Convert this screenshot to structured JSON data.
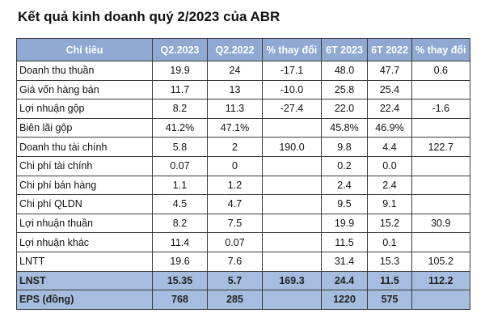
{
  "title": "Kết quả kinh doanh quý 2/2023 của ABR",
  "table": {
    "headers": [
      "Chỉ tiêu",
      "Q2.2023",
      "Q2.2022",
      "% thay đổi",
      "6T 2023",
      "6T 2022",
      "% thay đổi"
    ],
    "rows": [
      [
        "Doanh thu thuần",
        "19.9",
        "24",
        "-17.1",
        "48.0",
        "47.7",
        "0.6"
      ],
      [
        "Giá vốn hàng bán",
        "11.7",
        "13",
        "-10.0",
        "25.8",
        "25.4",
        ""
      ],
      [
        "Lợi nhuận gộp",
        "8.2",
        "11.3",
        "-27.4",
        "22.0",
        "22.4",
        "-1.6"
      ],
      [
        "Biên lãi gộp",
        "41.2%",
        "47.1%",
        "",
        "45.8%",
        "46.9%",
        ""
      ],
      [
        "Doanh thu tài chính",
        "5.8",
        "2",
        "190.0",
        "9.8",
        "4.4",
        "122.7"
      ],
      [
        "Chi phí tài chính",
        "0.07",
        "0",
        "",
        "0.2",
        "0.0",
        ""
      ],
      [
        "Chi phí bán hàng",
        "1.1",
        "1.2",
        "",
        "2.4",
        "2.4",
        ""
      ],
      [
        "Chi phí QLDN",
        "4.5",
        "4.7",
        "",
        "9.5",
        "9.1",
        ""
      ],
      [
        "Lợi nhuận thuần",
        "8.2",
        "7.5",
        "",
        "19.9",
        "15.2",
        "30.9"
      ],
      [
        "Lợi nhuận khác",
        "11.4",
        "0.07",
        "",
        "11.5",
        "0.1",
        ""
      ],
      [
        "LNTT",
        "19.6",
        "7.6",
        "",
        "31.4",
        "15.3",
        "105.2"
      ],
      [
        "LNST",
        "15.35",
        "5.7",
        "169.3",
        "24.4",
        "11.5",
        "112.2"
      ],
      [
        "EPS (đồng)",
        "768",
        "285",
        "",
        "1220",
        "575",
        ""
      ]
    ],
    "highlight_rows": [
      11,
      12
    ],
    "colors": {
      "header_bg": "#8fa9d2",
      "highlight_bg": "#a6bde0",
      "border": "#3a3a3a"
    }
  }
}
